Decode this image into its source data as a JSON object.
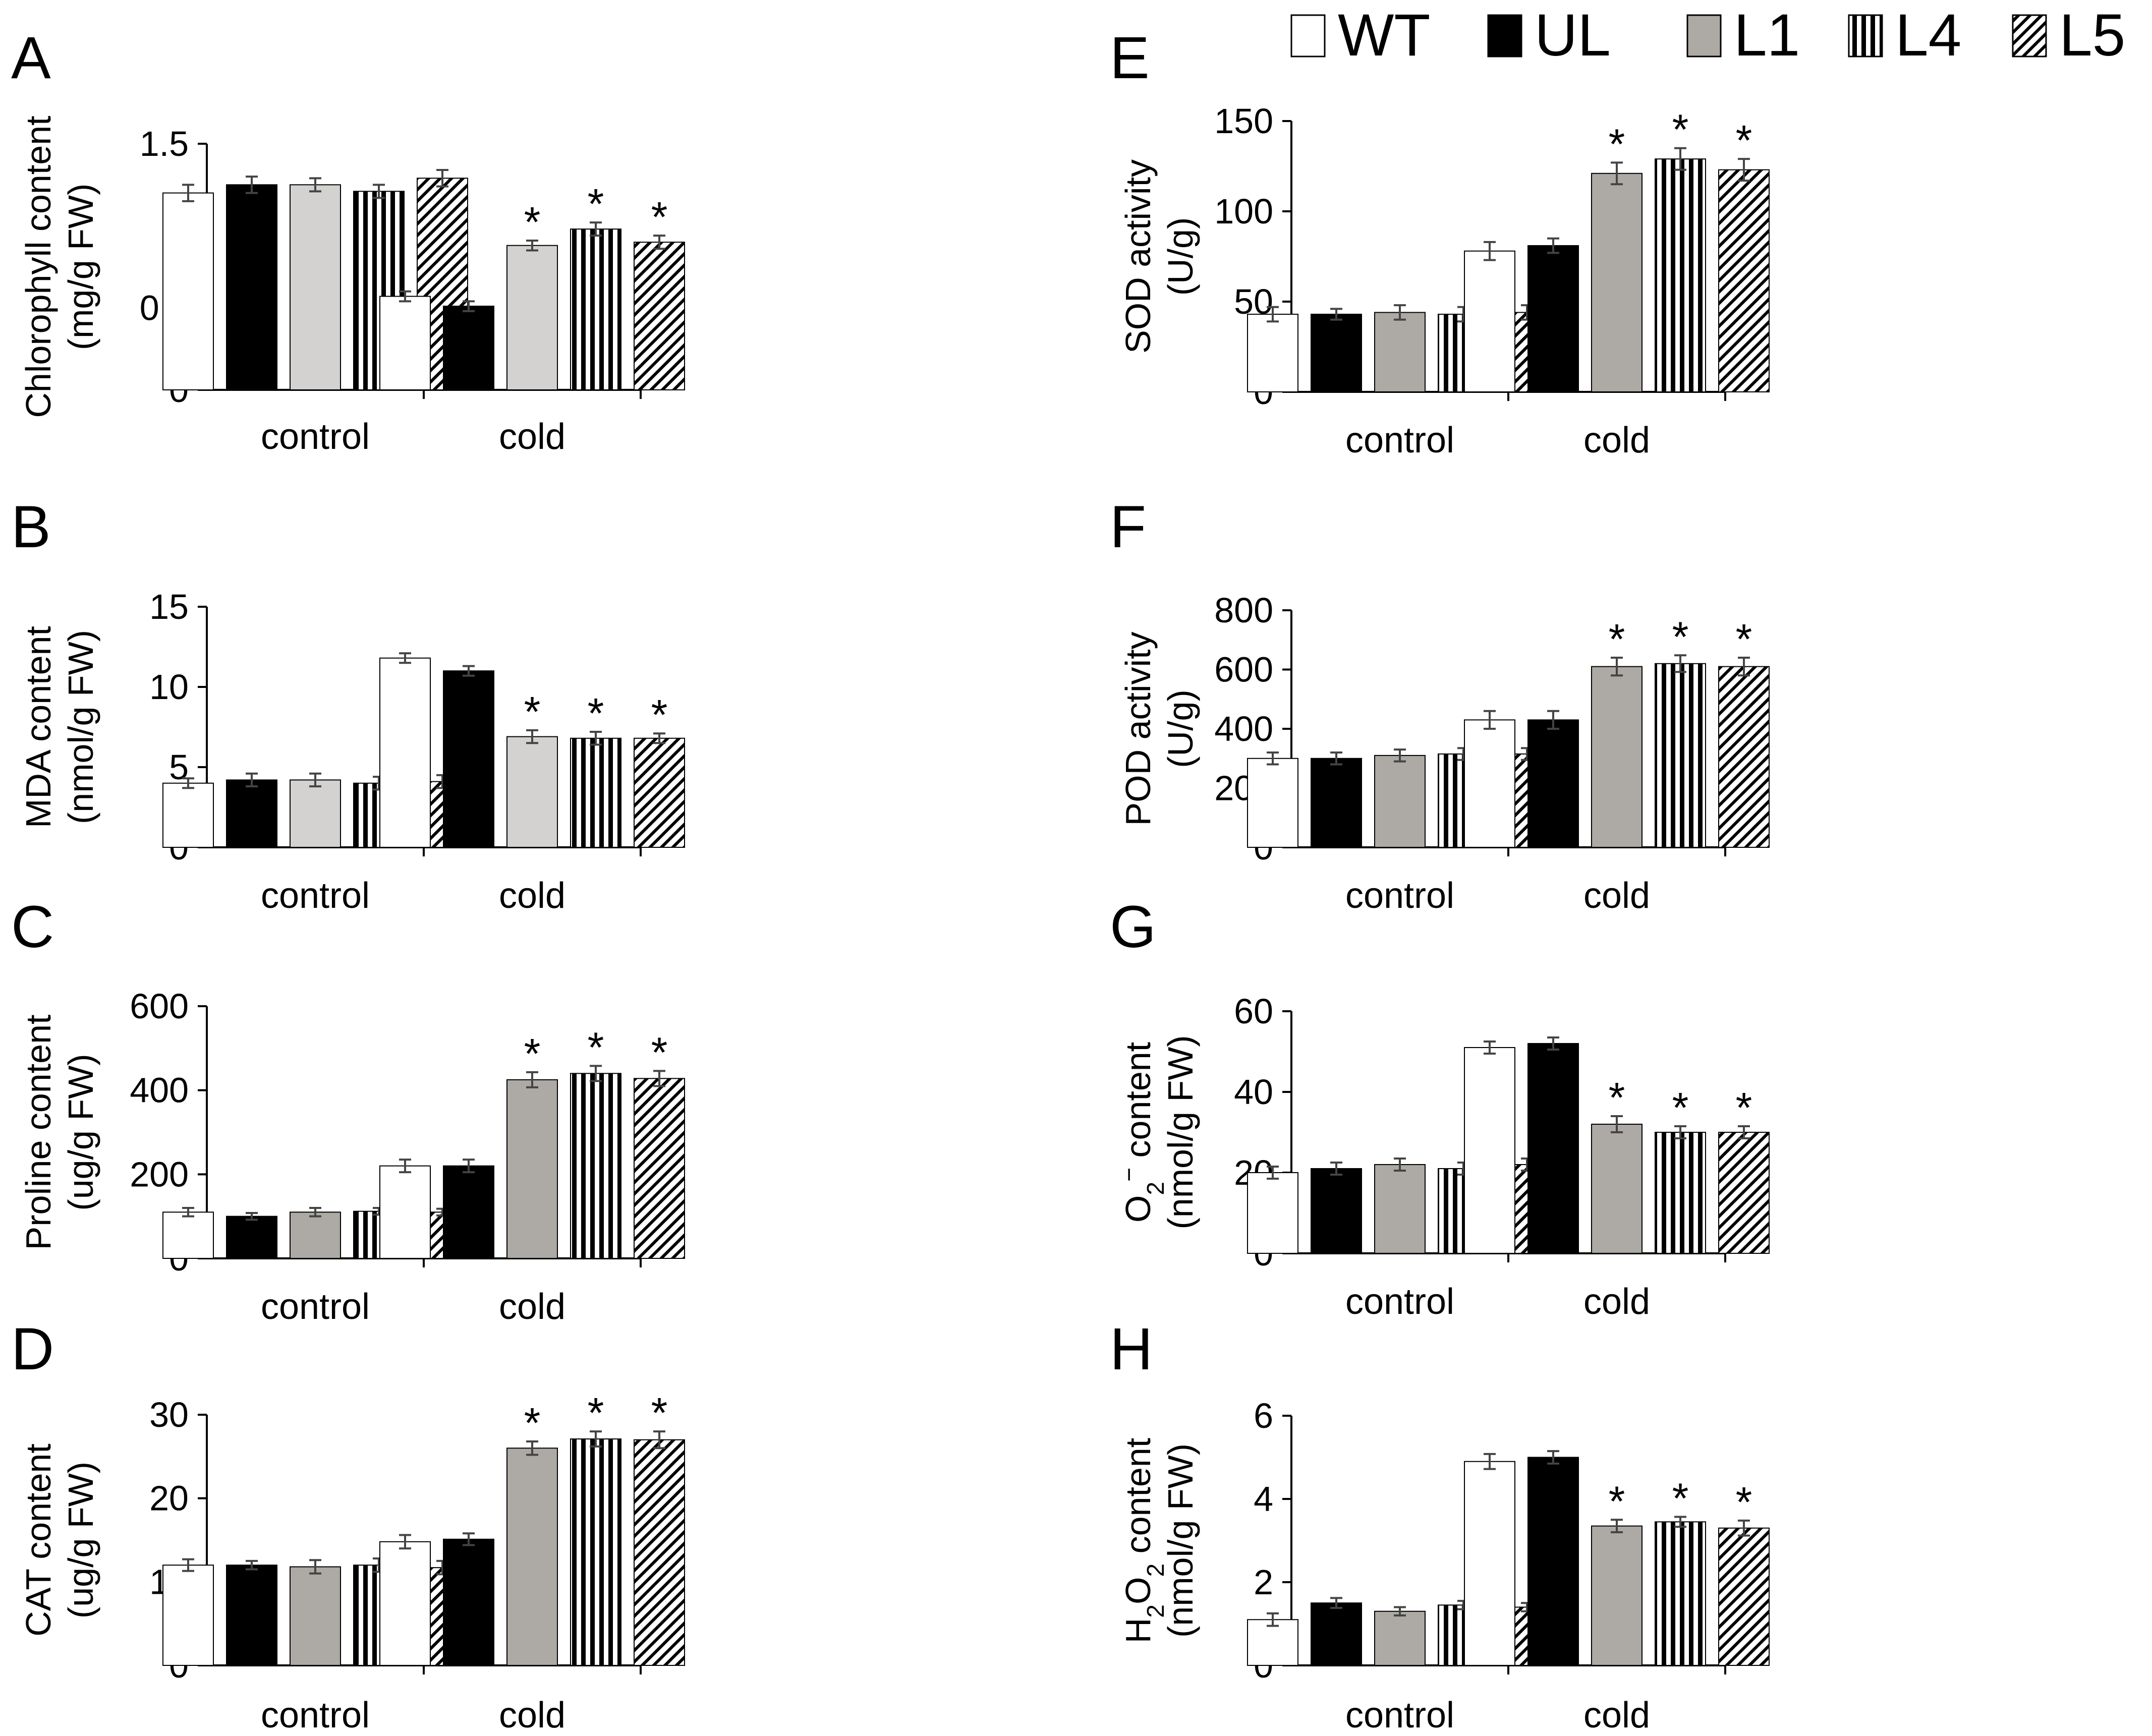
{
  "legend": [
    {
      "name": "WT",
      "fill": "#ffffff",
      "pattern": "none"
    },
    {
      "name": "UL",
      "fill": "#000000",
      "pattern": "none"
    },
    {
      "name": "L1",
      "fill": "#ada9a5",
      "pattern": "none"
    },
    {
      "name": "L4",
      "fill": "#ffffff",
      "pattern": "vertical-stripes"
    },
    {
      "name": "L5",
      "fill": "#ffffff",
      "pattern": "diagonal-stripes"
    }
  ],
  "chart_data": [
    {
      "panel": "A",
      "type": "bar",
      "ylabel_lines": [
        "Chlorophyll content",
        "(mg/g FW)"
      ],
      "categories": [
        "control",
        "cold"
      ],
      "ylim": [
        0,
        1.5
      ],
      "yticks": [
        "0",
        "0.5",
        "1",
        "1.5"
      ],
      "l1_fill": "#d4d2d1",
      "series": [
        {
          "name": "WT",
          "values": [
            1.2,
            0.57
          ],
          "errors": [
            0.05,
            0.03
          ]
        },
        {
          "name": "UL",
          "values": [
            1.25,
            0.51
          ],
          "errors": [
            0.05,
            0.03
          ]
        },
        {
          "name": "L1",
          "values": [
            1.25,
            0.88
          ],
          "errors": [
            0.04,
            0.03
          ]
        },
        {
          "name": "L4",
          "values": [
            1.21,
            0.98
          ],
          "errors": [
            0.04,
            0.04
          ]
        },
        {
          "name": "L5",
          "values": [
            1.29,
            0.9
          ],
          "errors": [
            0.05,
            0.04
          ]
        }
      ],
      "significance": [
        [
          false,
          false,
          false,
          false,
          false
        ],
        [
          false,
          false,
          true,
          true,
          true
        ]
      ]
    },
    {
      "panel": "B",
      "type": "bar",
      "ylabel_lines": [
        "MDA content",
        "(nmol/g FW)"
      ],
      "categories": [
        "control",
        "cold"
      ],
      "ylim": [
        0,
        15
      ],
      "yticks": [
        "0",
        "5",
        "10",
        "15"
      ],
      "l1_fill": "#d4d2d1",
      "series": [
        {
          "name": "WT",
          "values": [
            4.0,
            11.8
          ],
          "errors": [
            0.3,
            0.3
          ]
        },
        {
          "name": "UL",
          "values": [
            4.2,
            11.0
          ],
          "errors": [
            0.4,
            0.3
          ]
        },
        {
          "name": "L1",
          "values": [
            4.2,
            6.9
          ],
          "errors": [
            0.4,
            0.4
          ]
        },
        {
          "name": "L4",
          "values": [
            4.0,
            6.8
          ],
          "errors": [
            0.4,
            0.4
          ]
        },
        {
          "name": "L5",
          "values": [
            4.1,
            6.8
          ],
          "errors": [
            0.4,
            0.3
          ]
        }
      ],
      "significance": [
        [
          false,
          false,
          false,
          false,
          false
        ],
        [
          false,
          false,
          true,
          true,
          true
        ]
      ]
    },
    {
      "panel": "C",
      "type": "bar",
      "ylabel_lines": [
        "Proline content",
        "(ug/g FW)"
      ],
      "categories": [
        "control",
        "cold"
      ],
      "ylim": [
        0,
        600
      ],
      "yticks": [
        "0",
        "200",
        "400",
        "600"
      ],
      "l1_fill": "#ada9a5",
      "series": [
        {
          "name": "WT",
          "values": [
            110,
            220
          ],
          "errors": [
            10,
            15
          ]
        },
        {
          "name": "UL",
          "values": [
            100,
            220
          ],
          "errors": [
            8,
            15
          ]
        },
        {
          "name": "L1",
          "values": [
            110,
            425
          ],
          "errors": [
            10,
            18
          ]
        },
        {
          "name": "L4",
          "values": [
            112,
            440
          ],
          "errors": [
            8,
            18
          ]
        },
        {
          "name": "L5",
          "values": [
            110,
            428
          ],
          "errors": [
            8,
            18
          ]
        }
      ],
      "significance": [
        [
          false,
          false,
          false,
          false,
          false
        ],
        [
          false,
          false,
          true,
          true,
          true
        ]
      ]
    },
    {
      "panel": "D",
      "type": "bar",
      "ylabel_lines": [
        "CAT content",
        "(ug/g FW)"
      ],
      "categories": [
        "control",
        "cold"
      ],
      "ylim": [
        0,
        30
      ],
      "yticks": [
        "0",
        "10",
        "20",
        "30"
      ],
      "l1_fill": "#ada9a5",
      "series": [
        {
          "name": "WT",
          "values": [
            12.0,
            14.8
          ],
          "errors": [
            0.7,
            0.8
          ]
        },
        {
          "name": "UL",
          "values": [
            12.0,
            15.1
          ],
          "errors": [
            0.5,
            0.7
          ]
        },
        {
          "name": "L1",
          "values": [
            11.8,
            26.0
          ],
          "errors": [
            0.8,
            0.8
          ]
        },
        {
          "name": "L4",
          "values": [
            12.0,
            27.1
          ],
          "errors": [
            0.8,
            0.9
          ]
        },
        {
          "name": "L5",
          "values": [
            11.7,
            27.0
          ],
          "errors": [
            0.8,
            1.0
          ]
        }
      ],
      "significance": [
        [
          false,
          false,
          false,
          false,
          false
        ],
        [
          false,
          false,
          true,
          true,
          true
        ]
      ]
    },
    {
      "panel": "E",
      "type": "bar",
      "ylabel_lines": [
        "SOD activity",
        "(U/g)"
      ],
      "categories": [
        "control",
        "cold"
      ],
      "ylim": [
        0,
        150
      ],
      "yticks": [
        "0",
        "50",
        "100",
        "150"
      ],
      "l1_fill": "#ada9a5",
      "series": [
        {
          "name": "WT",
          "values": [
            43,
            78
          ],
          "errors": [
            4,
            5
          ]
        },
        {
          "name": "UL",
          "values": [
            43,
            81
          ],
          "errors": [
            3,
            4
          ]
        },
        {
          "name": "L1",
          "values": [
            44,
            121
          ],
          "errors": [
            4,
            6
          ]
        },
        {
          "name": "L4",
          "values": [
            43,
            129
          ],
          "errors": [
            4,
            6
          ]
        },
        {
          "name": "L5",
          "values": [
            44,
            123
          ],
          "errors": [
            4,
            6
          ]
        }
      ],
      "significance": [
        [
          false,
          false,
          false,
          false,
          false
        ],
        [
          false,
          false,
          true,
          true,
          true
        ]
      ]
    },
    {
      "panel": "F",
      "type": "bar",
      "ylabel_lines": [
        "POD activity",
        "(U/g)"
      ],
      "categories": [
        "control",
        "cold"
      ],
      "ylim": [
        0,
        800
      ],
      "yticks": [
        "0",
        "200",
        "400",
        "600",
        "800"
      ],
      "l1_fill": "#ada9a5",
      "series": [
        {
          "name": "WT",
          "values": [
            300,
            430
          ],
          "errors": [
            20,
            30
          ]
        },
        {
          "name": "UL",
          "values": [
            300,
            430
          ],
          "errors": [
            20,
            30
          ]
        },
        {
          "name": "L1",
          "values": [
            310,
            610
          ],
          "errors": [
            20,
            30
          ]
        },
        {
          "name": "L4",
          "values": [
            315,
            620
          ],
          "errors": [
            20,
            28
          ]
        },
        {
          "name": "L5",
          "values": [
            315,
            610
          ],
          "errors": [
            20,
            30
          ]
        }
      ],
      "significance": [
        [
          false,
          false,
          false,
          false,
          false
        ],
        [
          false,
          false,
          true,
          true,
          true
        ]
      ]
    },
    {
      "panel": "G",
      "type": "bar",
      "ylabel_lines": [
        "O2− content",
        "(nmol/g FW)"
      ],
      "ylabel_rich": [
        {
          "t": "O"
        },
        {
          "t": "2",
          "sub": true
        },
        {
          "t": "−",
          "sup": true
        },
        {
          "t": " content"
        }
      ],
      "categories": [
        "control",
        "cold"
      ],
      "ylim": [
        0,
        60
      ],
      "yticks": [
        "0",
        "20",
        "40",
        "60"
      ],
      "l1_fill": "#ada9a5",
      "series": [
        {
          "name": "WT",
          "values": [
            20,
            51
          ],
          "errors": [
            1.5,
            1.5
          ]
        },
        {
          "name": "UL",
          "values": [
            21,
            52
          ],
          "errors": [
            1.5,
            1.5
          ]
        },
        {
          "name": "L1",
          "values": [
            22,
            32
          ],
          "errors": [
            1.5,
            2.0
          ]
        },
        {
          "name": "L4",
          "values": [
            21,
            30
          ],
          "errors": [
            1.5,
            1.5
          ]
        },
        {
          "name": "L5",
          "values": [
            22,
            30
          ],
          "errors": [
            1.5,
            1.5
          ]
        }
      ],
      "significance": [
        [
          false,
          false,
          false,
          false,
          false
        ],
        [
          false,
          false,
          true,
          true,
          true
        ]
      ]
    },
    {
      "panel": "H",
      "type": "bar",
      "ylabel_lines": [
        "H2O2 content",
        "(nmol/g FW)"
      ],
      "ylabel_rich": [
        {
          "t": "H"
        },
        {
          "t": "2",
          "sub": true
        },
        {
          "t": "O"
        },
        {
          "t": "2",
          "sub": true
        },
        {
          "t": " content"
        }
      ],
      "categories": [
        "control",
        "cold"
      ],
      "ylim": [
        0,
        6
      ],
      "yticks": [
        "0",
        "2",
        "4",
        "6"
      ],
      "l1_fill": "#ada9a5",
      "series": [
        {
          "name": "WT",
          "values": [
            1.1,
            4.9
          ],
          "errors": [
            0.15,
            0.18
          ]
        },
        {
          "name": "UL",
          "values": [
            1.5,
            5.0
          ],
          "errors": [
            0.12,
            0.15
          ]
        },
        {
          "name": "L1",
          "values": [
            1.3,
            3.35
          ],
          "errors": [
            0.1,
            0.15
          ]
        },
        {
          "name": "L4",
          "values": [
            1.45,
            3.45
          ],
          "errors": [
            0.1,
            0.12
          ]
        },
        {
          "name": "L5",
          "values": [
            1.4,
            3.3
          ],
          "errors": [
            0.1,
            0.18
          ]
        }
      ],
      "significance": [
        [
          false,
          false,
          false,
          false,
          false
        ],
        [
          false,
          false,
          true,
          true,
          true
        ]
      ]
    }
  ]
}
